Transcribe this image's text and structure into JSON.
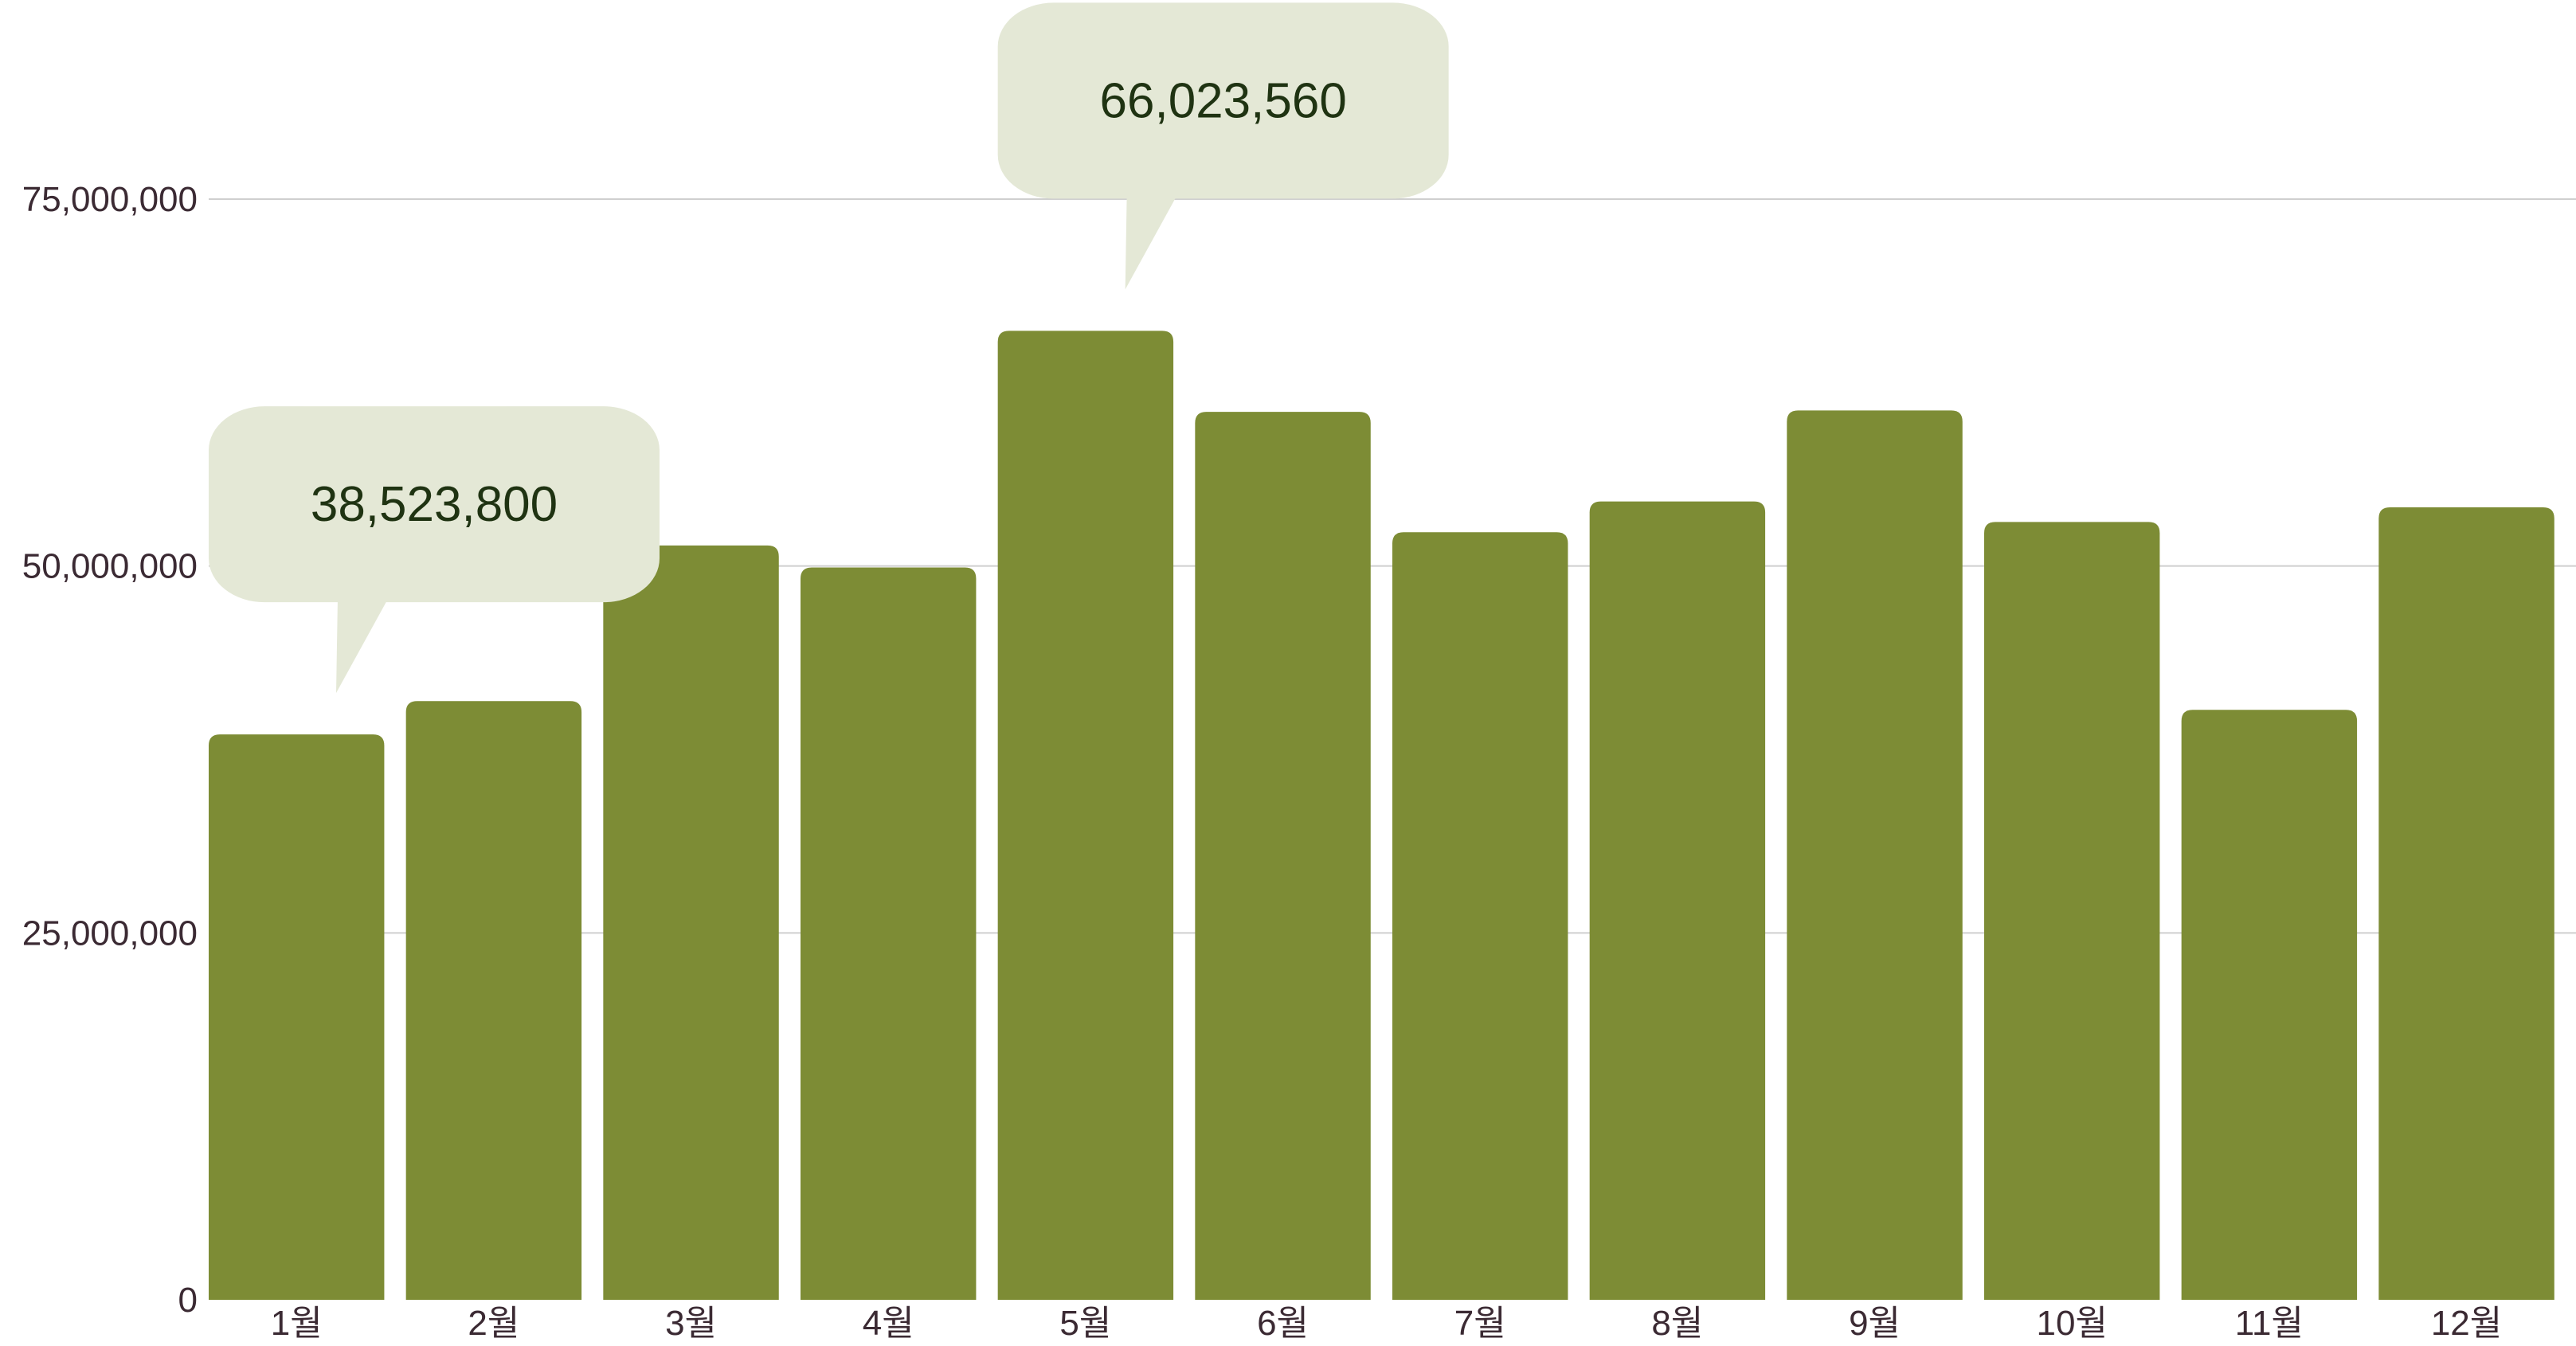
{
  "chart_data": {
    "type": "bar",
    "title": "",
    "xlabel": "",
    "ylabel": "",
    "categories": [
      "1월",
      "2월",
      "3월",
      "4월",
      "5월",
      "6월",
      "7월",
      "8월",
      "9월",
      "10월",
      "11월",
      "12월"
    ],
    "values": [
      38523800,
      40800000,
      51400000,
      49900000,
      66023560,
      60500000,
      52300000,
      54400000,
      60600000,
      53000000,
      40200000,
      54000000
    ],
    "ylim": [
      0,
      75000000
    ],
    "yticks": [
      0,
      25000000,
      50000000,
      75000000
    ],
    "ytick_labels": [
      "0",
      "25,000,000",
      "50,000,000",
      "75,000,000"
    ],
    "grid": "horizontal",
    "legend": "none",
    "bar_color": "#7d8c35",
    "grid_color": "#cfcfcf",
    "callouts": [
      {
        "category": "1월",
        "label": "38,523,800"
      },
      {
        "category": "5월",
        "label": "66,023,560"
      }
    ],
    "callout_color": "#e4e8d6",
    "callout_text_color": "#1f3312",
    "axis_text_color": "#3b2a33"
  }
}
